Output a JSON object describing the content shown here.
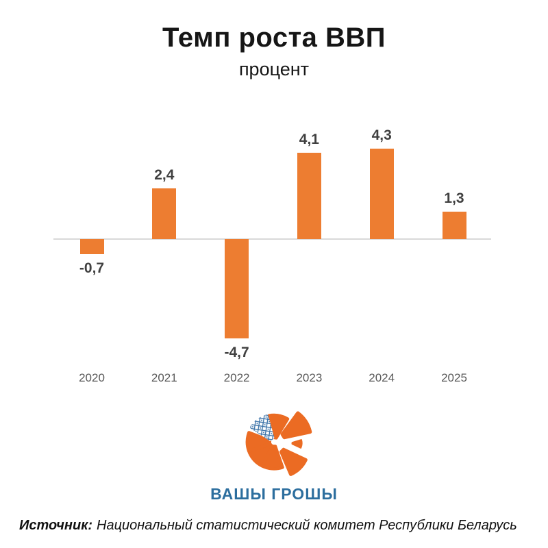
{
  "header": {
    "title": "Темп роста ВВП",
    "subtitle": "процент"
  },
  "chart_data": {
    "type": "bar",
    "title": "Темп роста ВВП",
    "subtitle": "процент",
    "categories": [
      "2020",
      "2021",
      "2022",
      "2023",
      "2024",
      "2025"
    ],
    "values": [
      -0.7,
      2.4,
      -4.7,
      4.1,
      4.3,
      1.3
    ],
    "labels": [
      "-0,7",
      "2,4",
      "-4,7",
      "4,1",
      "4,3",
      "1,3"
    ],
    "ylabel": "процент",
    "xlabel": "",
    "ylim": [
      -5.5,
      5.5
    ],
    "grid": false,
    "legend": false,
    "baseline": 0,
    "bar_color": "#ED7D31",
    "axis_color": "#D9D9D9",
    "label_color": "#404040",
    "tick_color": "#595959"
  },
  "logo": {
    "text": "ВАШЫ ГРОШЫ",
    "orange": "#EB6B23",
    "blue": "#2C6E9E"
  },
  "footer": {
    "source_label": "Источник:",
    "source_text": "Национальный статистический комитет Республики Беларусь"
  }
}
